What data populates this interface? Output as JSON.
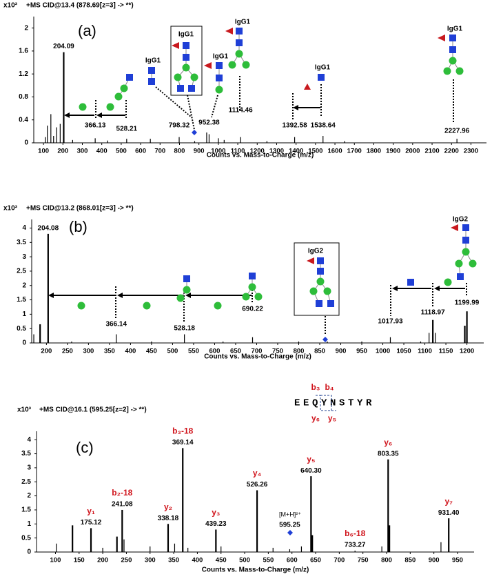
{
  "chart_data": [
    {
      "type": "bar",
      "panel_label": "(a)",
      "ylabel": "x10³",
      "subtitle": "+MS CID@13.4 (878.69[z=3] -> **)",
      "xlabel": "Counts vs. Mass-to-Charge (m/z)",
      "color": "#000000",
      "xlim": [
        50,
        2380
      ],
      "ylim": [
        0,
        2.2
      ],
      "xticks": [
        100,
        200,
        300,
        400,
        500,
        600,
        700,
        800,
        900,
        1000,
        1100,
        1200,
        1300,
        1400,
        1500,
        1600,
        1700,
        1800,
        1900,
        2000,
        2100,
        2200,
        2300
      ],
      "yticks": [
        0,
        0.4,
        0.8,
        1.2,
        1.6,
        2
      ],
      "x": [
        110,
        120,
        138,
        152,
        168,
        186,
        204.09,
        250,
        366.13,
        430,
        528.21,
        650,
        798.32,
        878,
        940,
        952.38,
        1000,
        1030,
        1114.46,
        1250,
        1392.58,
        1538.64,
        1650,
        2227.96
      ],
      "values": [
        0.1,
        0.3,
        0.5,
        0.12,
        0.27,
        0.33,
        1.58,
        0.05,
        0.08,
        0.04,
        0.07,
        0.07,
        0.1,
        0.03,
        0.18,
        0.15,
        0.08,
        0.05,
        0.1,
        0.03,
        0.1,
        0.12,
        0.03,
        0.07
      ],
      "labels": [
        null,
        null,
        null,
        null,
        null,
        null,
        "204.09",
        null,
        "366.13",
        null,
        "528.21",
        null,
        "798.32",
        null,
        null,
        "952.38",
        null,
        null,
        "1114.46",
        null,
        "1392.58",
        "1538.64",
        null,
        "2227.96"
      ],
      "annotations": [
        "IgG1",
        "IgG1",
        "IgG1",
        "IgG1",
        "IgG1",
        "IgG1"
      ]
    },
    {
      "type": "bar",
      "panel_label": "(b)",
      "ylabel": "x10³",
      "subtitle": "+MS CID@13.2 (868.01[z=3] -> **)",
      "xlabel": "Counts vs. Mass-to-Charge (m/z)",
      "color": "#000000",
      "xlim": [
        165,
        1240
      ],
      "ylim": [
        0,
        4.3
      ],
      "xticks": [
        200,
        250,
        300,
        350,
        400,
        450,
        500,
        550,
        600,
        650,
        700,
        750,
        800,
        850,
        900,
        950,
        1000,
        1050,
        1100,
        1150,
        1200
      ],
      "yticks": [
        0,
        0.5,
        1,
        1.5,
        2,
        2.5,
        3,
        3.5,
        4
      ],
      "x": [
        170,
        185,
        204.08,
        260,
        366.14,
        450,
        528.18,
        620,
        690.22,
        800,
        868,
        950,
        1017.93,
        1090,
        1110,
        1118.97,
        1125,
        1195,
        1199.99
      ],
      "values": [
        0.3,
        0.65,
        3.8,
        0.05,
        0.3,
        0.05,
        0.3,
        0.05,
        0.2,
        0.05,
        0.05,
        0.05,
        0.2,
        0.05,
        0.35,
        0.8,
        0.35,
        0.6,
        1.1
      ],
      "labels": [
        null,
        null,
        "204.08",
        null,
        "366.14",
        null,
        "528.18",
        null,
        "690.22",
        null,
        null,
        null,
        "1017.93",
        null,
        null,
        "1118.97",
        null,
        null,
        "1199.99"
      ],
      "annotations": [
        "IgG2",
        "IgG2"
      ]
    },
    {
      "type": "bar",
      "panel_label": "(c)",
      "ylabel": "x10³",
      "subtitle": "+MS CID@16.1 (595.25[z=2] -> **)",
      "xlabel": "Counts vs. Mass-to-Charge (m/z)",
      "color": "#000000",
      "xlim": [
        60,
        985
      ],
      "ylim": [
        0,
        4.3
      ],
      "xticks": [
        100,
        150,
        200,
        250,
        300,
        350,
        400,
        450,
        500,
        550,
        600,
        650,
        700,
        750,
        800,
        850,
        900,
        950
      ],
      "yticks": [
        0,
        0.5,
        1,
        1.5,
        2,
        2.5,
        3,
        3.5,
        4
      ],
      "x": [
        102,
        136,
        175.12,
        200,
        230,
        241.08,
        245,
        300,
        338.18,
        352,
        369.14,
        380,
        439.23,
        450,
        526.26,
        560,
        595.25,
        620,
        640.3,
        643,
        733.27,
        790,
        803.35,
        806,
        915,
        931.4
      ],
      "values": [
        0.3,
        0.95,
        0.85,
        0.15,
        0.55,
        1.5,
        0.45,
        0.2,
        1.0,
        0.3,
        3.7,
        0.15,
        0.8,
        0.2,
        2.2,
        0.15,
        0.1,
        0.2,
        2.7,
        0.6,
        0.05,
        0.2,
        3.3,
        0.95,
        0.35,
        1.2
      ],
      "labels": [
        null,
        null,
        "175.12",
        null,
        null,
        "241.08",
        null,
        null,
        "338.18",
        null,
        "369.14",
        null,
        "439.23",
        null,
        "526.26",
        null,
        "595.25",
        null,
        "640.30",
        null,
        "733.27",
        null,
        "803.35",
        null,
        null,
        "931.40"
      ],
      "ion_labels": [
        null,
        null,
        "y₁",
        null,
        null,
        "b₂-18",
        null,
        null,
        "y₂",
        null,
        "b₃-18",
        null,
        "y₃",
        null,
        "y₄",
        null,
        null,
        null,
        "y₅",
        null,
        "b₆-18",
        null,
        "y₆",
        null,
        null,
        "y₇"
      ],
      "annotations": [
        "[M+H]²⁺"
      ],
      "peptide": "EEQYNSTYR",
      "fragments": [
        "b₃",
        "b₄",
        "y₆",
        "y₅"
      ]
    }
  ]
}
